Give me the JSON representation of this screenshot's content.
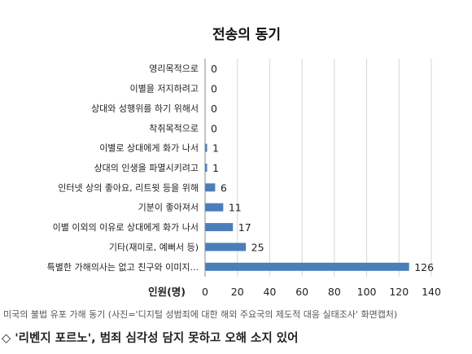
{
  "chart_data": {
    "type": "bar",
    "orientation": "horizontal",
    "title": "전송의 동기",
    "xlabel": "인원(명)",
    "ylabel": "",
    "xlim": [
      0,
      140
    ],
    "xticks": [
      0,
      20,
      40,
      60,
      80,
      100,
      120,
      140
    ],
    "grid": true,
    "categories": [
      "영리목적으로",
      "이별을 저지하려고",
      "상대와 성행위를 하기 위해서",
      "착취목적으로",
      "이별로 상대에게 화가 나서",
      "상대의 인생을 파멸시키려고",
      "인터넷 상의 좋아요, 리트윗 등을 위해",
      "기분이 좋아져서",
      "이별 이외의 이유로 상대에게 화가 나서",
      "기타(재미로, 예뻐서 등)",
      "특별한 가해의사는 없고 친구와 이미지..."
    ],
    "values": [
      0,
      0,
      0,
      0,
      1,
      1,
      6,
      11,
      17,
      25,
      126
    ],
    "bar_color": "#4a7ebb"
  },
  "caption": "미국의 불법 유포 가해 동기 (사진='디지털 성범죄에 대한 해외 주요국의 제도적 대응 실태조사' 화면캡처)",
  "headline": "◇ '리벤지 포르노', 범죄 심각성 담지 못하고 오해 소지 있어"
}
